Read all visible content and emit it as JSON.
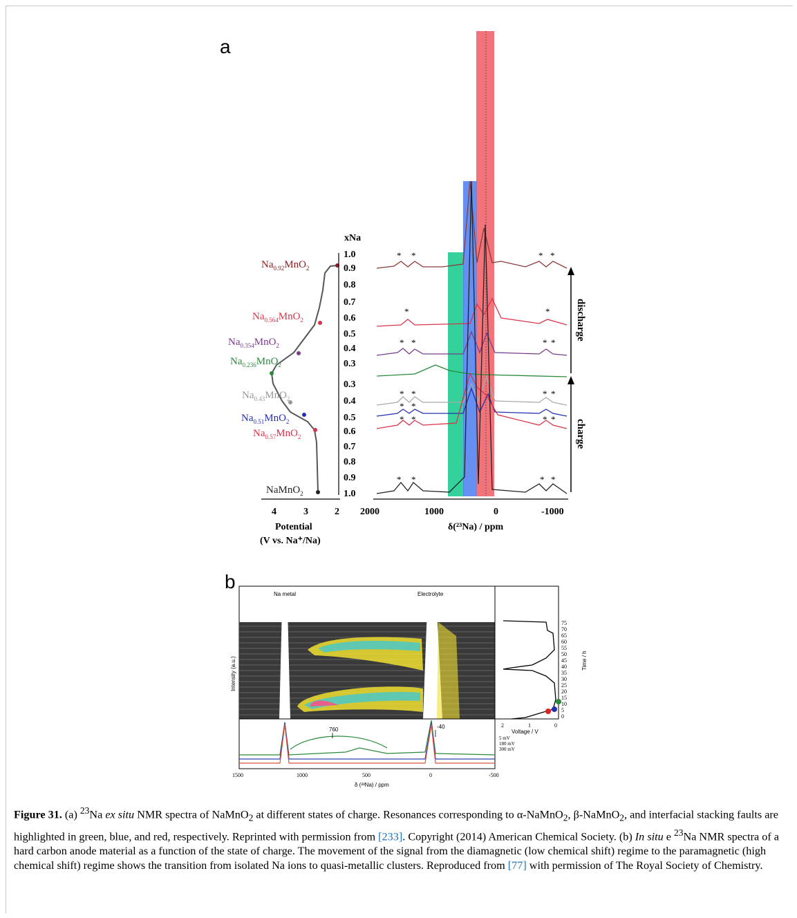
{
  "panel_a": {
    "letter": "a",
    "xna_header": "xNa",
    "xna_discharge_ticks": [
      "1.0",
      "0.9",
      "0.8",
      "0.7",
      "0.6",
      "0.5",
      "0.4",
      "0.3"
    ],
    "xna_charge_ticks": [
      "0.3",
      "0.4",
      "0.5",
      "0.6",
      "0.7",
      "0.8",
      "0.9",
      "1.0"
    ],
    "potential_ticks": [
      "4",
      "3",
      "2"
    ],
    "potential_label_1": "Potential",
    "potential_label_2": "(V vs. Na⁺/Na)",
    "shift_ticks": [
      "2000",
      "1000",
      "0",
      "-1000"
    ],
    "shift_label": "δ(²³Na) / ppm",
    "discharge_label": "discharge",
    "charge_label": "charge",
    "compositions": [
      {
        "pre": "Na",
        "sub": "0.92",
        "post": "MnO",
        "post_sub": "2",
        "color": "#8b2020"
      },
      {
        "pre": "Na",
        "sub": "0.564",
        "post": "MnO",
        "post_sub": "2",
        "color": "#d8334a"
      },
      {
        "pre": "Na",
        "sub": "0.354",
        "post": "MnO",
        "post_sub": "2",
        "color": "#7a3d8c"
      },
      {
        "pre": "Na",
        "sub": "0.236",
        "post": "MnO",
        "post_sub": "2",
        "color": "#2a8a3a"
      },
      {
        "pre": "Na",
        "sub": "0.43",
        "post": "MnO",
        "post_sub": "2",
        "color": "#999999"
      },
      {
        "pre": "Na",
        "sub": "0.51",
        "post": "MnO",
        "post_sub": "2",
        "color": "#2430b0"
      },
      {
        "pre": "Na",
        "sub": "0.57",
        "post": "MnO",
        "post_sub": "2",
        "color": "#d8334a"
      },
      {
        "pre": "NaMnO",
        "sub": "",
        "post": "",
        "post_sub": "2",
        "color": "#222222"
      }
    ],
    "highlight_colors": {
      "alpha": "#12c98a",
      "beta": "#4a7df0",
      "faults": "#f05a62"
    },
    "spectra_colors": [
      "#8b3a3a",
      "#d8334a",
      "#7a3d8c",
      "#2a8a3a",
      "#999999",
      "#2430b0",
      "#d8334a",
      "#222222"
    ]
  },
  "panel_b": {
    "letter": "b",
    "label_na_metal": "Na metal",
    "label_electrolyte": "Electrolyte",
    "ylabel": "Intensity (a.u.)",
    "time_label": "Time / h",
    "time_ticks": [
      "75",
      "70",
      "65",
      "60",
      "55",
      "50",
      "45",
      "40",
      "35",
      "30",
      "25",
      "20",
      "15",
      "10",
      "5",
      "0"
    ],
    "voltage_ticks": [
      "2",
      "1",
      "0"
    ],
    "voltage_label": "Voltage / V",
    "legend": [
      "5 mV",
      "180 mV",
      "300 mV"
    ],
    "peak_760": "760",
    "peak_m40": "-40",
    "shift_ticks": [
      "1500",
      "1000",
      "500",
      "0",
      "-500"
    ],
    "shift_label": "δ (²³Na) / ppm"
  },
  "caption": {
    "label": "Figure 31.",
    "part_a_1": " (a) ",
    "part_a_2": "Na ",
    "ex_situ": "ex situ",
    "part_a_3": " NMR spectra of NaMnO",
    "part_a_4": " at different states of charge. Resonances corresponding to α-NaMnO",
    "part_a_5": ", β-NaMnO",
    "part_a_6": ", and interfacial stacking faults are highlighted in green, blue, and red, respectively. Reprinted with permission from ",
    "ref1": "[233]",
    "part_a_7": ". Copyright (2014) American Chemical Society. (b) ",
    "in_situ": "In situ",
    "part_b_1": " e ",
    "part_b_2": "Na NMR spectra of a hard carbon anode material as a function of the state of charge. The movement of the signal from the diamagnetic (low chemical shift) regime to the paramagnetic (high chemical shift) regime shows the transition from isolated Na ions to quasi-metallic clusters. Reproduced from ",
    "ref2": "[77]",
    "part_b_3": " with permission of The Royal Society of Chemistry.",
    "sup23": "23",
    "sub2": "2"
  }
}
